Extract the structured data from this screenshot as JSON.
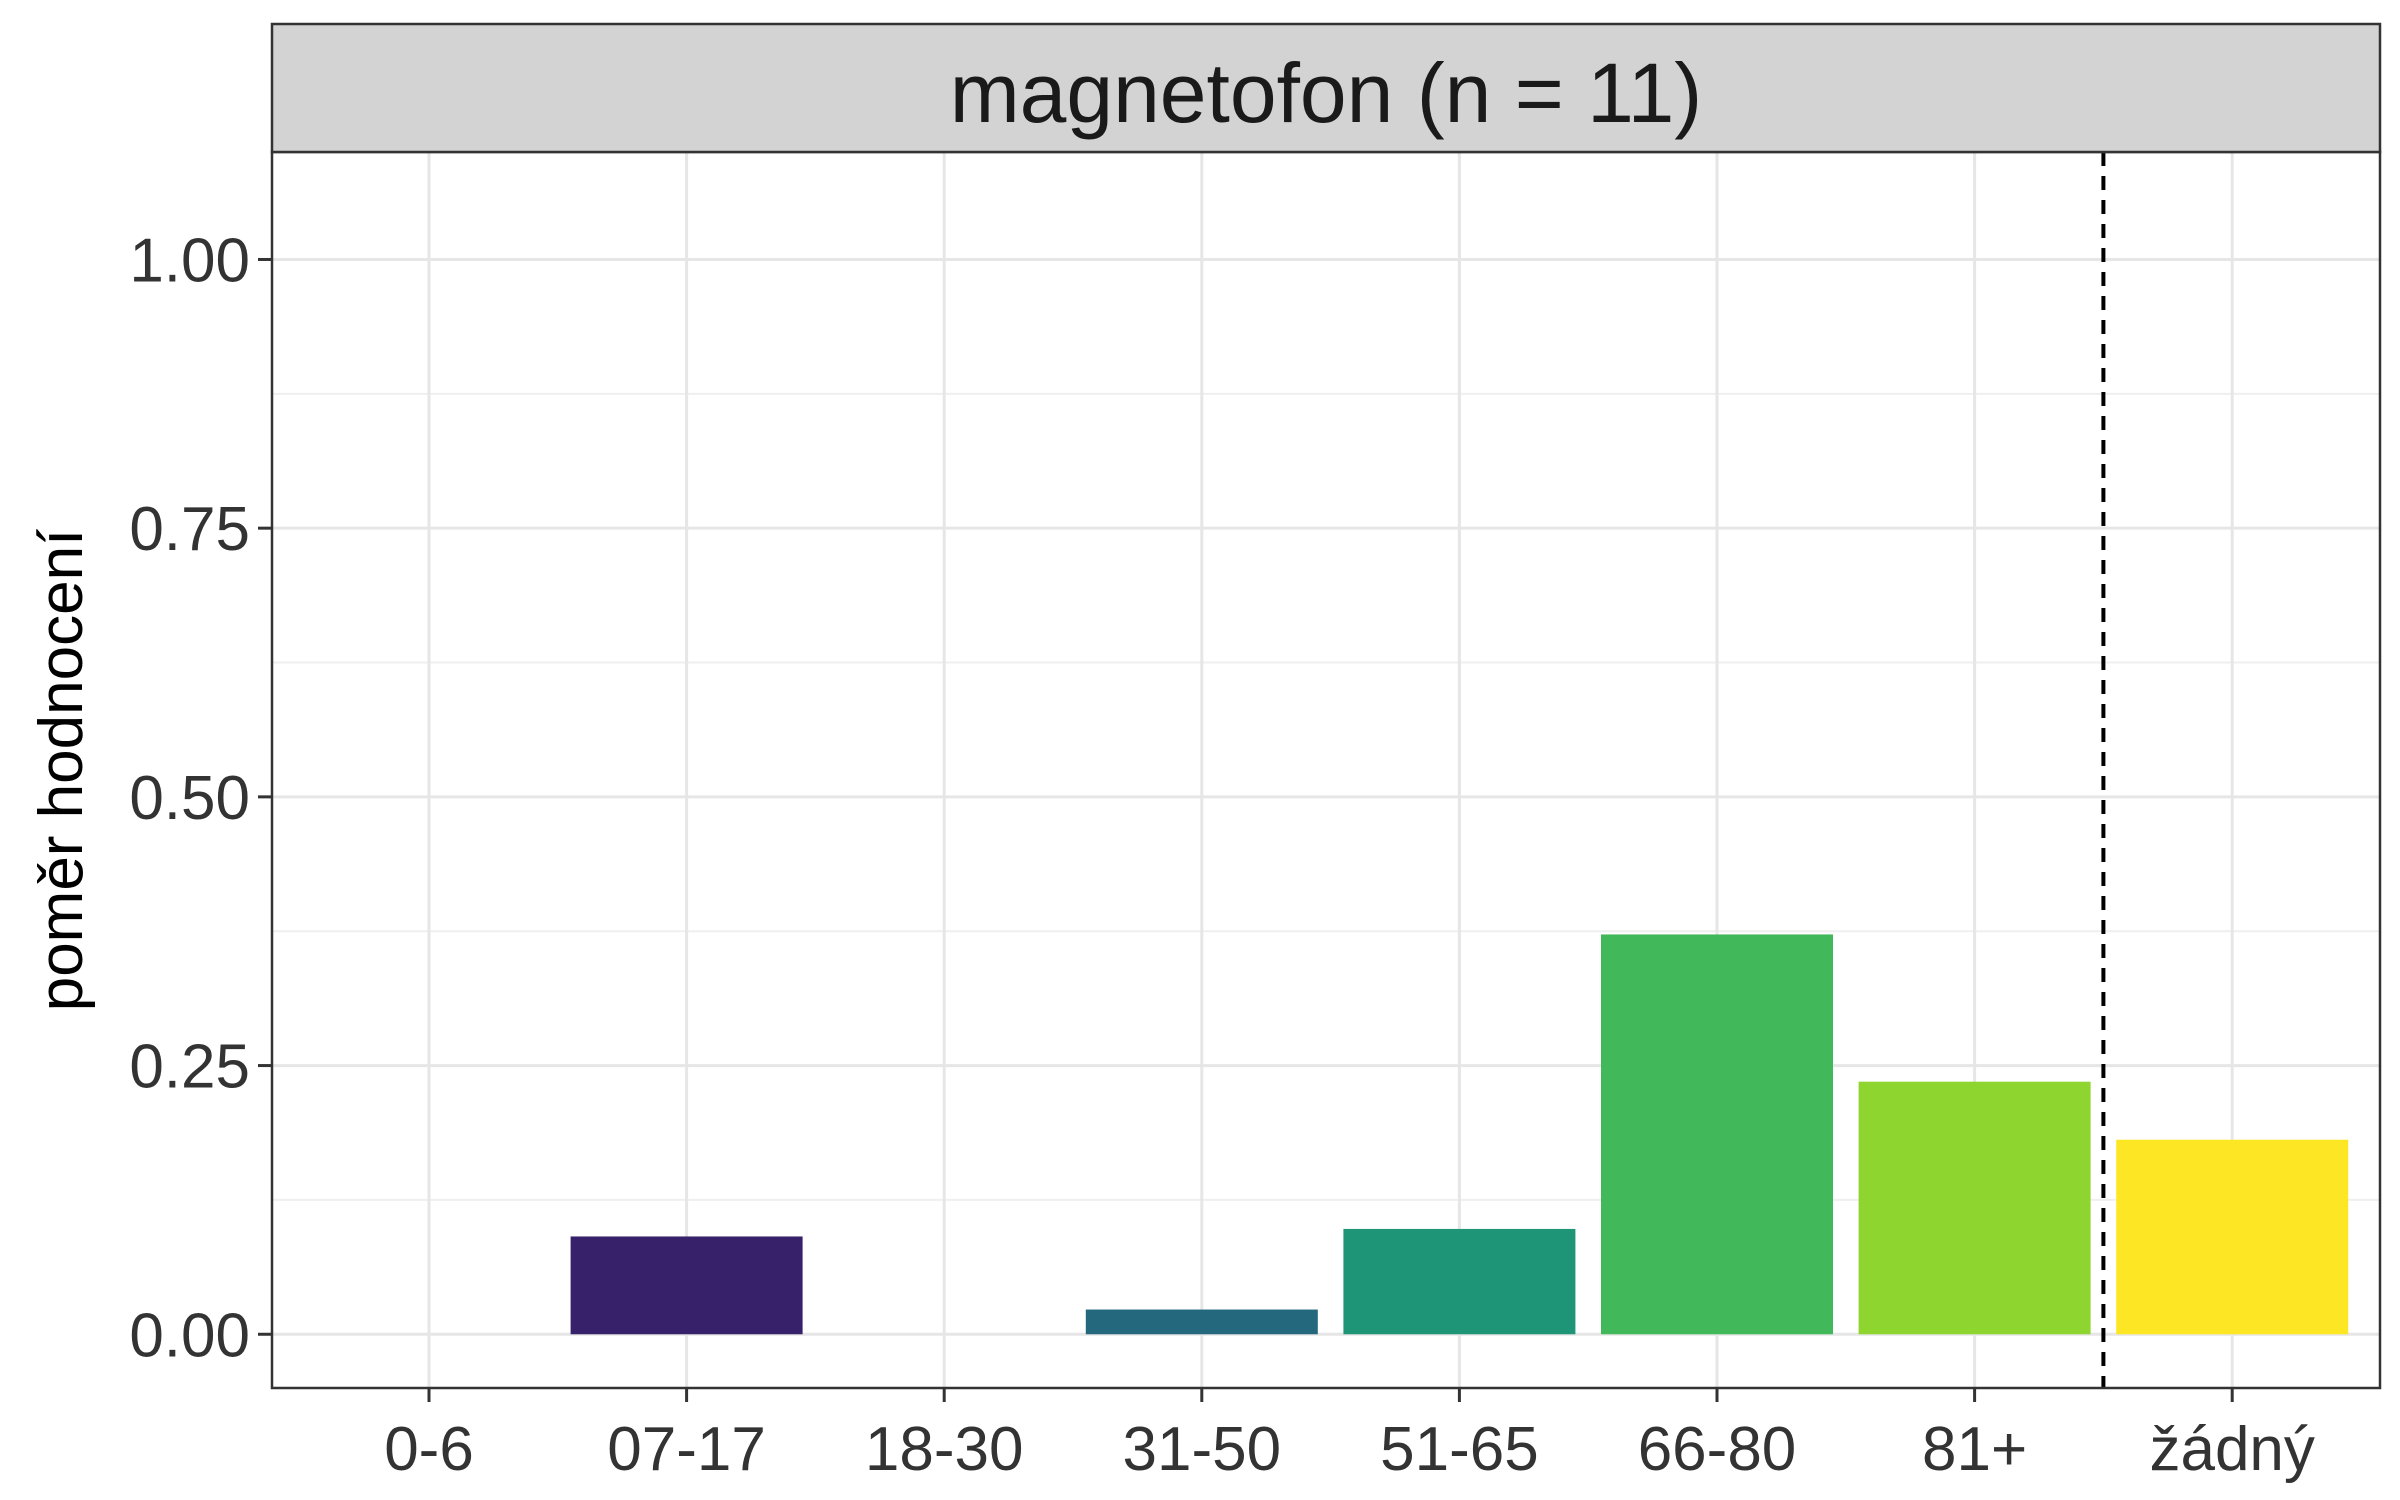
{
  "chart_data": {
    "type": "bar",
    "panel_title": "magnetofon (n = 11)",
    "ylabel": "poměr hodnocení",
    "xlabel": "",
    "categories": [
      "0-6",
      "07-17",
      "18-30",
      "31-50",
      "51-65",
      "66-80",
      "81+",
      "žádný"
    ],
    "values": [
      0.0,
      0.091,
      0.0,
      0.023,
      0.098,
      0.372,
      0.235,
      0.181
    ],
    "colors": [
      "#440154",
      "#37216b",
      "#31688e",
      "#24687e",
      "#1f9577",
      "#41b85a",
      "#8fd52f",
      "#fde725"
    ],
    "ylim": [
      -0.05,
      1.1
    ],
    "yticks": [
      0.0,
      0.25,
      0.5,
      0.75,
      1.0
    ],
    "ytick_labels": [
      "0.00",
      "0.25",
      "0.50",
      "0.75",
      "1.00"
    ],
    "reference_line": {
      "between": [
        "81+",
        "žádný"
      ],
      "style": "dashed"
    },
    "grid": true,
    "legend": "none"
  }
}
